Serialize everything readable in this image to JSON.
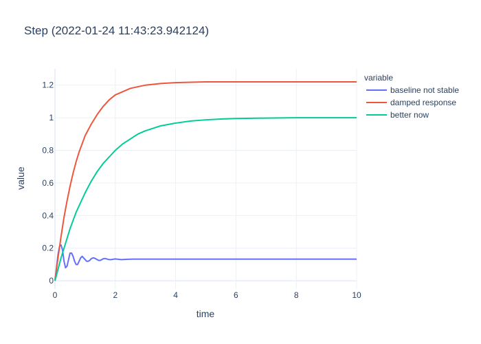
{
  "chart_data": {
    "type": "line",
    "title": "Step  (2022-01-24 11:43:23.942124)",
    "xlabel": "time",
    "ylabel": "value",
    "xlim": [
      0,
      10
    ],
    "ylim": [
      -0.05,
      1.3
    ],
    "x_ticks": [
      0,
      2,
      4,
      6,
      8,
      10
    ],
    "y_ticks": [
      0,
      0.2,
      0.4,
      0.6,
      0.8,
      1,
      1.2
    ],
    "x_tick_labels": [
      "0",
      "2",
      "4",
      "6",
      "8",
      "10"
    ],
    "y_tick_labels": [
      "0",
      "0.2",
      "0.4",
      "0.6",
      "0.8",
      "1",
      "1.2"
    ],
    "grid": true,
    "legend_title": "variable",
    "legend_position": "right",
    "series": [
      {
        "name": "baseline not stable",
        "color": "#636efa",
        "x": [
          0,
          0.05,
          0.1,
          0.15,
          0.2,
          0.25,
          0.3,
          0.35,
          0.4,
          0.45,
          0.5,
          0.55,
          0.6,
          0.65,
          0.7,
          0.75,
          0.8,
          0.85,
          0.9,
          0.95,
          1.0,
          1.05,
          1.1,
          1.15,
          1.2,
          1.25,
          1.3,
          1.35,
          1.4,
          1.45,
          1.5,
          1.55,
          1.6,
          1.65,
          1.7,
          1.75,
          1.8,
          1.85,
          1.9,
          1.95,
          2.0,
          2.1,
          2.2,
          2.4,
          2.6,
          3.0,
          4,
          5,
          6,
          7,
          8,
          9,
          10
        ],
        "y": [
          0,
          0.08,
          0.16,
          0.21,
          0.22,
          0.19,
          0.12,
          0.08,
          0.09,
          0.13,
          0.17,
          0.17,
          0.15,
          0.12,
          0.1,
          0.1,
          0.12,
          0.14,
          0.15,
          0.14,
          0.13,
          0.12,
          0.12,
          0.125,
          0.135,
          0.14,
          0.14,
          0.135,
          0.13,
          0.125,
          0.125,
          0.13,
          0.135,
          0.137,
          0.135,
          0.132,
          0.13,
          0.13,
          0.131,
          0.133,
          0.134,
          0.132,
          0.13,
          0.132,
          0.133,
          0.133,
          0.133,
          0.133,
          0.133,
          0.133,
          0.133,
          0.133,
          0.133
        ]
      },
      {
        "name": "damped response",
        "color": "#ef553b",
        "x": [
          0,
          0.1,
          0.2,
          0.3,
          0.4,
          0.5,
          0.6,
          0.7,
          0.8,
          0.9,
          1.0,
          1.2,
          1.4,
          1.6,
          1.8,
          2.0,
          2.25,
          2.5,
          2.75,
          3.0,
          3.5,
          4.0,
          4.5,
          5.0,
          6.0,
          7.0,
          8.0,
          10.0
        ],
        "y": [
          0,
          0.14,
          0.27,
          0.39,
          0.49,
          0.58,
          0.66,
          0.73,
          0.79,
          0.84,
          0.89,
          0.96,
          1.02,
          1.07,
          1.11,
          1.14,
          1.16,
          1.18,
          1.19,
          1.2,
          1.21,
          1.215,
          1.218,
          1.22,
          1.22,
          1.22,
          1.22,
          1.22
        ]
      },
      {
        "name": "better now",
        "color": "#00cc96",
        "x": [
          0,
          0.1,
          0.2,
          0.3,
          0.4,
          0.5,
          0.6,
          0.7,
          0.8,
          0.9,
          1.0,
          1.2,
          1.4,
          1.6,
          1.8,
          2.0,
          2.25,
          2.5,
          2.75,
          3.0,
          3.5,
          4.0,
          4.5,
          5.0,
          5.5,
          6.0,
          7.0,
          8.0,
          10.0
        ],
        "y": [
          0,
          0.07,
          0.14,
          0.2,
          0.26,
          0.32,
          0.37,
          0.42,
          0.46,
          0.5,
          0.54,
          0.61,
          0.67,
          0.72,
          0.76,
          0.8,
          0.84,
          0.87,
          0.9,
          0.92,
          0.95,
          0.967,
          0.98,
          0.987,
          0.992,
          0.995,
          0.998,
          1.0,
          1.0
        ]
      }
    ]
  }
}
